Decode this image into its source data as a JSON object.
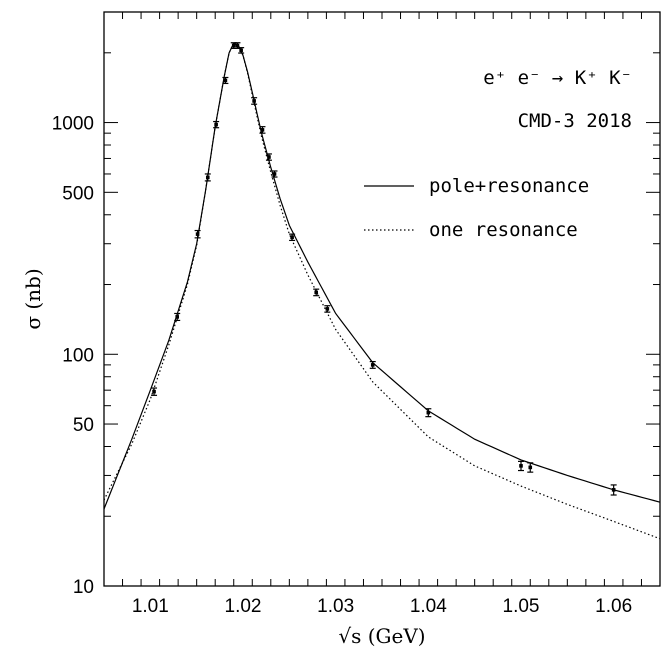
{
  "chart_data": {
    "type": "scatter",
    "title": "",
    "xlabel": "√s (GeV)",
    "ylabel": "σ (nb)",
    "xlim": [
      1.005,
      1.065
    ],
    "ylim": [
      10,
      3000
    ],
    "yscale": "log",
    "grid": false,
    "x_ticks": [
      1.01,
      1.02,
      1.03,
      1.04,
      1.05,
      1.06
    ],
    "x_tick_labels": [
      "1.01",
      "1.02",
      "1.03",
      "1.04",
      "1.05",
      "1.06"
    ],
    "y_ticks": [
      10,
      50,
      100,
      500,
      1000
    ],
    "y_tick_labels": [
      "10",
      "50",
      "100",
      "500",
      "1000"
    ],
    "annotations": [
      "e⁺ e⁻ → K⁺ K⁻",
      "CMD-3 2018"
    ],
    "legend": {
      "placement": "top-right",
      "entries": [
        "pole+resonance",
        "one resonance"
      ]
    },
    "series": [
      {
        "name": "",
        "kind": "points-with-errors",
        "x": [
          1.0104,
          1.0129,
          1.0151,
          1.0162,
          1.0171,
          1.0181,
          1.019,
          1.0194,
          1.0198,
          1.0212,
          1.0221,
          1.0228,
          1.0234,
          1.0253,
          1.0279,
          1.0291,
          1.034,
          1.04,
          1.05,
          1.051,
          1.06
        ],
        "y": [
          69,
          145,
          330,
          580,
          980,
          1520,
          2150,
          2150,
          2050,
          1240,
          930,
          710,
          600,
          320,
          185,
          157,
          90,
          56,
          33,
          32.5,
          26
        ],
        "yerr": [
          2.5,
          5,
          12,
          20,
          30,
          45,
          60,
          60,
          55,
          40,
          30,
          22,
          18,
          10,
          6,
          5,
          3,
          2.2,
          1.5,
          1.5,
          1.3
        ]
      },
      {
        "name": "pole+resonance",
        "kind": "line",
        "style": "solid",
        "x": [
          1.005,
          1.008,
          1.01,
          1.012,
          1.014,
          1.015,
          1.016,
          1.017,
          1.018,
          1.0185,
          1.019,
          1.0195,
          1.02,
          1.0205,
          1.021,
          1.0215,
          1.022,
          1.023,
          1.024,
          1.025,
          1.027,
          1.03,
          1.034,
          1.04,
          1.045,
          1.05,
          1.055,
          1.06,
          1.065
        ],
        "y": [
          21.5,
          43,
          70,
          115,
          205,
          300,
          520,
          960,
          1600,
          2000,
          2200,
          2150,
          1950,
          1650,
          1350,
          1100,
          900,
          640,
          470,
          360,
          250,
          150,
          92,
          57,
          43,
          35,
          30,
          26,
          23
        ]
      },
      {
        "name": "one resonance",
        "kind": "line",
        "style": "dotted",
        "x": [
          1.005,
          1.008,
          1.01,
          1.012,
          1.014,
          1.015,
          1.016,
          1.017,
          1.018,
          1.0185,
          1.019,
          1.0195,
          1.02,
          1.0205,
          1.021,
          1.0215,
          1.022,
          1.023,
          1.024,
          1.025,
          1.027,
          1.03,
          1.034,
          1.04,
          1.045,
          1.05,
          1.055,
          1.06,
          1.065
        ],
        "y": [
          23.5,
          41,
          64,
          110,
          200,
          295,
          520,
          960,
          1600,
          2000,
          2200,
          2150,
          1950,
          1630,
          1320,
          1070,
          870,
          610,
          440,
          330,
          220,
          128,
          76,
          44,
          33,
          27,
          22.5,
          19,
          16
        ]
      }
    ]
  }
}
